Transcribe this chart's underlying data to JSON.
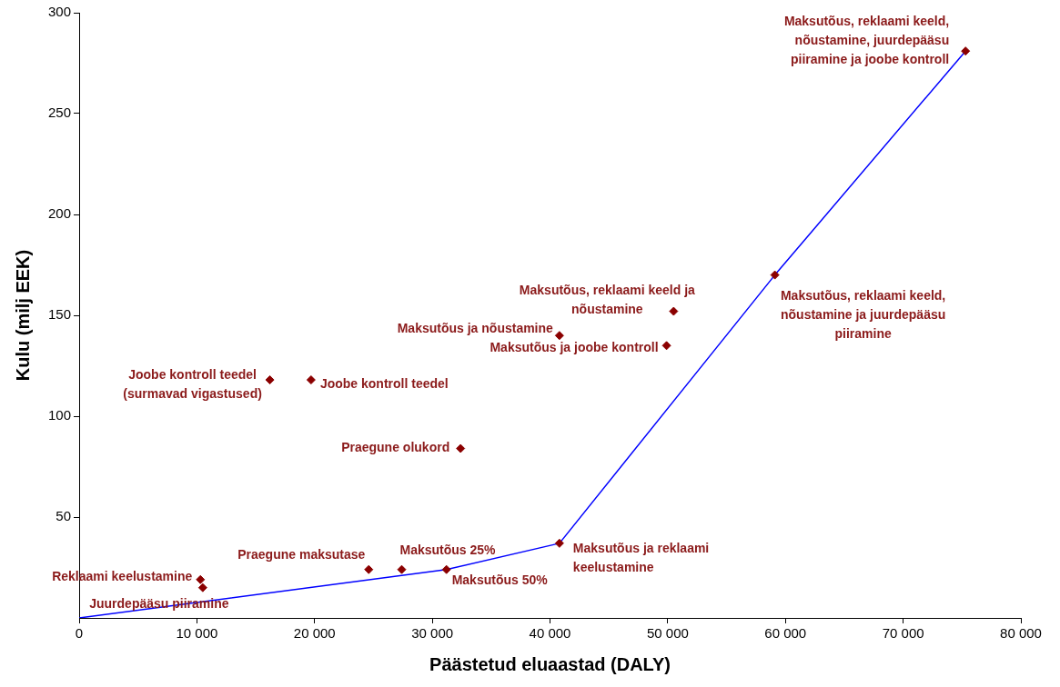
{
  "chart_data": {
    "type": "scatter",
    "xlabel": "Päästetud eluaastad (DALY)",
    "ylabel": "Kulu (milj EEK)",
    "xlim": [
      0,
      80000
    ],
    "xticks": [
      0,
      {
        "value": 10000,
        "label": "10 000"
      },
      {
        "value": 20000,
        "label": "20 000"
      },
      {
        "value": 30000,
        "label": "30 000"
      },
      {
        "value": 40000,
        "label": "40 000"
      },
      {
        "value": 50000,
        "label": "50 000"
      },
      {
        "value": 60000,
        "label": "60 000"
      },
      {
        "value": 70000,
        "label": "70 000"
      },
      {
        "value": 80000,
        "label": "80 000"
      }
    ],
    "ylim": [
      0,
      300
    ],
    "yticks": [
      50,
      100,
      150,
      200,
      250,
      300
    ],
    "grid": false,
    "legend": false,
    "marker": "diamond",
    "series": [
      {
        "type": "scatter",
        "color": "#8b0000",
        "x": [
          10300,
          10500,
          16200,
          19700,
          24600,
          27400,
          31200,
          32400,
          40800,
          40800,
          49900,
          50500,
          59100,
          75300
        ],
        "values": [
          19,
          15,
          118,
          118,
          24,
          24,
          24,
          84,
          37,
          140,
          135,
          152,
          170,
          281
        ]
      },
      {
        "type": "line",
        "color": "#0000ff",
        "marker": "none",
        "x": [
          0,
          31200,
          40800,
          59100,
          75300
        ],
        "values": [
          0,
          24,
          37,
          170,
          281
        ]
      }
    ],
    "annotations": [
      {
        "text": "Reklaami keelustamine",
        "x": 10300,
        "y": 19
      },
      {
        "text": "Juurdepääsu piiramine",
        "x": 10500,
        "y": 15
      },
      {
        "text": "Joobe kontroll teedel\n(surmavad vigastused)",
        "x": 16200,
        "y": 118
      },
      {
        "text": "Joobe kontroll teedel",
        "x": 19700,
        "y": 118
      },
      {
        "text": "Praegune maksutase",
        "x": 24600,
        "y": 24
      },
      {
        "text": "Maksutõus 25%",
        "x": 27400,
        "y": 24
      },
      {
        "text": "Maksutõus 50%",
        "x": 31200,
        "y": 24
      },
      {
        "text": "Praegune olukord",
        "x": 32400,
        "y": 84
      },
      {
        "text": "Maksutõus ja reklaami\nkeelustamine",
        "x": 40800,
        "y": 37
      },
      {
        "text": "Maksutõus ja nõustamine",
        "x": 40800,
        "y": 140
      },
      {
        "text": "Maksutõus ja joobe kontroll",
        "x": 49900,
        "y": 135
      },
      {
        "text": "Maksutõus, reklaami keeld ja\nnõustamine",
        "x": 50500,
        "y": 152
      },
      {
        "text": "Maksutõus, reklaami keeld,\nnõustamine ja juurdepääsu\npiiramine",
        "x": 59100,
        "y": 170
      },
      {
        "text": "Maksutõus, reklaami keeld,\nnõustamine, juurdepääsu\npiiramine ja joobe kontroll",
        "x": 75300,
        "y": 281
      }
    ]
  }
}
